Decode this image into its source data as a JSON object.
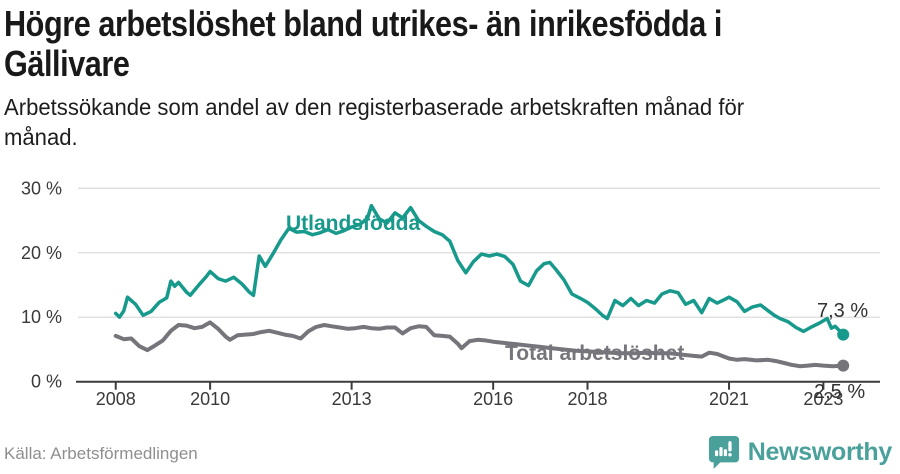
{
  "header": {
    "title": "Högre arbetslöshet bland utrikes- än inrikesfödda i\nGällivare",
    "subtitle": "Arbetssökande som andel av den registerbaserade arbetskraften månad för\nmånad."
  },
  "footer": {
    "source": "Källa: Arbetsförmedlingen",
    "brand": "Newsworthy"
  },
  "colors": {
    "accent_teal": "#17998c",
    "line_gray": "#76757b",
    "logo_teal": "#4aa09a",
    "grid": "#dcdcdc",
    "axis": "#3c3c3c",
    "tick_text": "#3a3a3a",
    "end_label_text": "#333333",
    "title_text": "#191919",
    "muted_text": "#8f8f8f"
  },
  "chart_data": {
    "type": "line",
    "title": "Högre arbetslöshet bland utrikes- än inrikesfödda i Gällivare",
    "subtitle": "Arbetssökande som andel av den registerbaserade arbetskraften månad för månad.",
    "source": "Källa: Arbetsförmedlingen",
    "xlabel": "",
    "ylabel": "",
    "grid": true,
    "legend_position": "inline-labels",
    "xlim": [
      2007.2,
      2024.2
    ],
    "ylim": [
      0,
      30
    ],
    "yticks": [
      {
        "v": 0,
        "label": "0 %"
      },
      {
        "v": 10,
        "label": "10 %"
      },
      {
        "v": 20,
        "label": "20 %"
      },
      {
        "v": 30,
        "label": "30 %"
      }
    ],
    "xticks": [
      2008,
      2010,
      2013,
      2016,
      2018,
      2021,
      2023
    ],
    "series": [
      {
        "name": "Utlandsfödda",
        "color": "#17998c",
        "end_label": "7,3 %",
        "end_value": 7.3,
        "points": [
          [
            2008.0,
            10.6
          ],
          [
            2008.08,
            10.0
          ],
          [
            2008.17,
            11.0
          ],
          [
            2008.25,
            13.1
          ],
          [
            2008.42,
            12.0
          ],
          [
            2008.58,
            10.3
          ],
          [
            2008.75,
            10.9
          ],
          [
            2008.92,
            12.3
          ],
          [
            2009.08,
            13.0
          ],
          [
            2009.17,
            15.6
          ],
          [
            2009.25,
            14.8
          ],
          [
            2009.33,
            15.4
          ],
          [
            2009.5,
            13.9
          ],
          [
            2009.58,
            13.4
          ],
          [
            2009.75,
            14.9
          ],
          [
            2009.92,
            16.3
          ],
          [
            2010.0,
            17.1
          ],
          [
            2010.17,
            16.0
          ],
          [
            2010.33,
            15.6
          ],
          [
            2010.5,
            16.2
          ],
          [
            2010.67,
            15.2
          ],
          [
            2010.83,
            13.9
          ],
          [
            2010.92,
            13.4
          ],
          [
            2011.04,
            19.5
          ],
          [
            2011.17,
            17.9
          ],
          [
            2011.33,
            19.8
          ],
          [
            2011.5,
            22.0
          ],
          [
            2011.67,
            23.8
          ],
          [
            2011.83,
            23.2
          ],
          [
            2012.0,
            23.3
          ],
          [
            2012.17,
            22.8
          ],
          [
            2012.33,
            23.1
          ],
          [
            2012.5,
            23.6
          ],
          [
            2012.67,
            23.0
          ],
          [
            2012.83,
            23.4
          ],
          [
            2013.0,
            24.0
          ],
          [
            2013.17,
            24.4
          ],
          [
            2013.33,
            25.2
          ],
          [
            2013.42,
            27.3
          ],
          [
            2013.58,
            25.3
          ],
          [
            2013.75,
            24.6
          ],
          [
            2013.92,
            26.2
          ],
          [
            2014.08,
            25.4
          ],
          [
            2014.25,
            27.0
          ],
          [
            2014.42,
            25.0
          ],
          [
            2014.58,
            24.1
          ],
          [
            2014.75,
            23.3
          ],
          [
            2014.92,
            22.8
          ],
          [
            2015.08,
            21.8
          ],
          [
            2015.25,
            18.8
          ],
          [
            2015.42,
            16.9
          ],
          [
            2015.58,
            18.6
          ],
          [
            2015.75,
            19.8
          ],
          [
            2015.92,
            19.5
          ],
          [
            2016.08,
            19.8
          ],
          [
            2016.25,
            19.4
          ],
          [
            2016.42,
            18.2
          ],
          [
            2016.58,
            15.6
          ],
          [
            2016.75,
            14.9
          ],
          [
            2016.92,
            17.2
          ],
          [
            2017.08,
            18.3
          ],
          [
            2017.2,
            18.5
          ],
          [
            2017.33,
            17.4
          ],
          [
            2017.5,
            15.8
          ],
          [
            2017.67,
            13.6
          ],
          [
            2017.83,
            13.0
          ],
          [
            2018.0,
            12.3
          ],
          [
            2018.17,
            11.3
          ],
          [
            2018.33,
            10.2
          ],
          [
            2018.42,
            9.8
          ],
          [
            2018.58,
            12.6
          ],
          [
            2018.75,
            11.8
          ],
          [
            2018.92,
            12.9
          ],
          [
            2019.08,
            11.8
          ],
          [
            2019.25,
            12.6
          ],
          [
            2019.42,
            12.2
          ],
          [
            2019.58,
            13.6
          ],
          [
            2019.75,
            14.1
          ],
          [
            2019.92,
            13.8
          ],
          [
            2020.08,
            12.0
          ],
          [
            2020.25,
            12.6
          ],
          [
            2020.42,
            10.7
          ],
          [
            2020.58,
            12.9
          ],
          [
            2020.75,
            12.2
          ],
          [
            2020.92,
            12.8
          ],
          [
            2021.0,
            13.1
          ],
          [
            2021.17,
            12.4
          ],
          [
            2021.33,
            10.9
          ],
          [
            2021.5,
            11.6
          ],
          [
            2021.67,
            11.9
          ],
          [
            2021.83,
            11.0
          ],
          [
            2021.96,
            10.3
          ],
          [
            2022.08,
            9.8
          ],
          [
            2022.25,
            9.3
          ],
          [
            2022.42,
            8.4
          ],
          [
            2022.58,
            7.8
          ],
          [
            2022.75,
            8.5
          ],
          [
            2022.92,
            9.1
          ],
          [
            2023.08,
            9.8
          ],
          [
            2023.17,
            8.3
          ],
          [
            2023.25,
            8.6
          ],
          [
            2023.42,
            7.3
          ]
        ]
      },
      {
        "name": "Total arbetslöshet",
        "color": "#76757b",
        "end_label": "2,5 %",
        "end_value": 2.5,
        "points": [
          [
            2008.0,
            7.1
          ],
          [
            2008.17,
            6.6
          ],
          [
            2008.33,
            6.7
          ],
          [
            2008.5,
            5.5
          ],
          [
            2008.67,
            4.9
          ],
          [
            2008.83,
            5.6
          ],
          [
            2009.0,
            6.4
          ],
          [
            2009.17,
            7.9
          ],
          [
            2009.33,
            8.8
          ],
          [
            2009.5,
            8.7
          ],
          [
            2009.67,
            8.3
          ],
          [
            2009.83,
            8.5
          ],
          [
            2010.0,
            9.2
          ],
          [
            2010.17,
            8.2
          ],
          [
            2010.33,
            7.0
          ],
          [
            2010.42,
            6.5
          ],
          [
            2010.58,
            7.2
          ],
          [
            2010.75,
            7.3
          ],
          [
            2010.92,
            7.4
          ],
          [
            2011.08,
            7.7
          ],
          [
            2011.25,
            7.9
          ],
          [
            2011.42,
            7.6
          ],
          [
            2011.58,
            7.3
          ],
          [
            2011.75,
            7.1
          ],
          [
            2011.92,
            6.7
          ],
          [
            2012.08,
            7.8
          ],
          [
            2012.25,
            8.5
          ],
          [
            2012.42,
            8.8
          ],
          [
            2012.58,
            8.6
          ],
          [
            2012.75,
            8.4
          ],
          [
            2012.92,
            8.2
          ],
          [
            2013.08,
            8.3
          ],
          [
            2013.25,
            8.5
          ],
          [
            2013.42,
            8.3
          ],
          [
            2013.58,
            8.2
          ],
          [
            2013.75,
            8.4
          ],
          [
            2013.92,
            8.4
          ],
          [
            2014.08,
            7.5
          ],
          [
            2014.25,
            8.3
          ],
          [
            2014.42,
            8.6
          ],
          [
            2014.58,
            8.5
          ],
          [
            2014.75,
            7.2
          ],
          [
            2014.92,
            7.1
          ],
          [
            2015.08,
            7.0
          ],
          [
            2015.25,
            5.9
          ],
          [
            2015.33,
            5.2
          ],
          [
            2015.5,
            6.3
          ],
          [
            2015.67,
            6.5
          ],
          [
            2015.83,
            6.4
          ],
          [
            2016.0,
            6.2
          ],
          [
            2016.25,
            6.0
          ],
          [
            2016.5,
            5.8
          ],
          [
            2016.75,
            5.6
          ],
          [
            2017.0,
            5.4
          ],
          [
            2017.25,
            5.2
          ],
          [
            2017.5,
            5.0
          ],
          [
            2017.75,
            4.8
          ],
          [
            2018.0,
            4.7
          ],
          [
            2018.25,
            4.6
          ],
          [
            2018.5,
            4.5
          ],
          [
            2018.75,
            4.4
          ],
          [
            2019.0,
            4.4
          ],
          [
            2019.25,
            4.5
          ],
          [
            2019.5,
            4.4
          ],
          [
            2019.75,
            4.4
          ],
          [
            2020.0,
            4.2
          ],
          [
            2020.25,
            4.0
          ],
          [
            2020.42,
            3.9
          ],
          [
            2020.58,
            4.5
          ],
          [
            2020.75,
            4.3
          ],
          [
            2021.0,
            3.6
          ],
          [
            2021.17,
            3.4
          ],
          [
            2021.33,
            3.5
          ],
          [
            2021.58,
            3.3
          ],
          [
            2021.83,
            3.4
          ],
          [
            2022.0,
            3.2
          ],
          [
            2022.17,
            2.9
          ],
          [
            2022.33,
            2.6
          ],
          [
            2022.5,
            2.4
          ],
          [
            2022.67,
            2.5
          ],
          [
            2022.83,
            2.6
          ],
          [
            2023.0,
            2.5
          ],
          [
            2023.2,
            2.4
          ],
          [
            2023.42,
            2.5
          ]
        ]
      }
    ]
  }
}
